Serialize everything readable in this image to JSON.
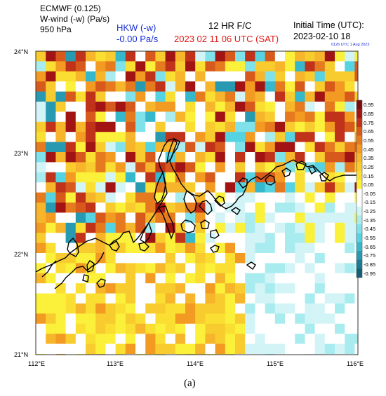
{
  "header": {
    "model": "ECMWF (0.125)",
    "variable": "W-wind (-w) (Pa/s)",
    "level": "950 hPa",
    "station_name": "HKW (-w)",
    "station_value": "-0.00 Pa/s",
    "forecast": "12 HR F/C",
    "valid_time": "2023 02 11  06 UTC (SAT)",
    "init_label": "Initial Time (UTC):",
    "init_value": "2023-02-10  18",
    "stamp": "0126 UTC 1 Aug 2023"
  },
  "axes": {
    "lat_ticks": [
      "24°N",
      "23°N",
      "22°N",
      "21°N"
    ],
    "lon_ticks": [
      "112°E",
      "113°E",
      "114°E",
      "115°E",
      "116°E"
    ],
    "lat_range": [
      21,
      24
    ],
    "lon_range": [
      112,
      116
    ]
  },
  "colorbar": {
    "labels": [
      "0.95",
      "0.85",
      "0.75",
      "0.65",
      "0.55",
      "0.45",
      "0.35",
      "0.25",
      "0.15",
      "0.05",
      "-0.05",
      "-0.15",
      "-0.25",
      "-0.35",
      "-0.45",
      "-0.55",
      "-0.65",
      "-0.75",
      "-0.85",
      "-0.95"
    ],
    "colors": [
      "#7a0c0c",
      "#a21414",
      "#c0321a",
      "#d75a1c",
      "#e57a1e",
      "#f39a22",
      "#f6b52a",
      "#f8cc2e",
      "#fadf32",
      "#fbf03a",
      "#ffffff",
      "#ffffff",
      "#d3f4f6",
      "#a9ecf0",
      "#7fe1ea",
      "#55d3e2",
      "#35b8cc",
      "#2799b0",
      "#1c7a92",
      "#145f74"
    ]
  },
  "caption": "(a)",
  "colors": {
    "model_text": "#000000",
    "station_text": "#1a2fd6",
    "valid_time_text": "#e01818",
    "stamp_text": "#1a2fd6",
    "coast": "#000000"
  }
}
